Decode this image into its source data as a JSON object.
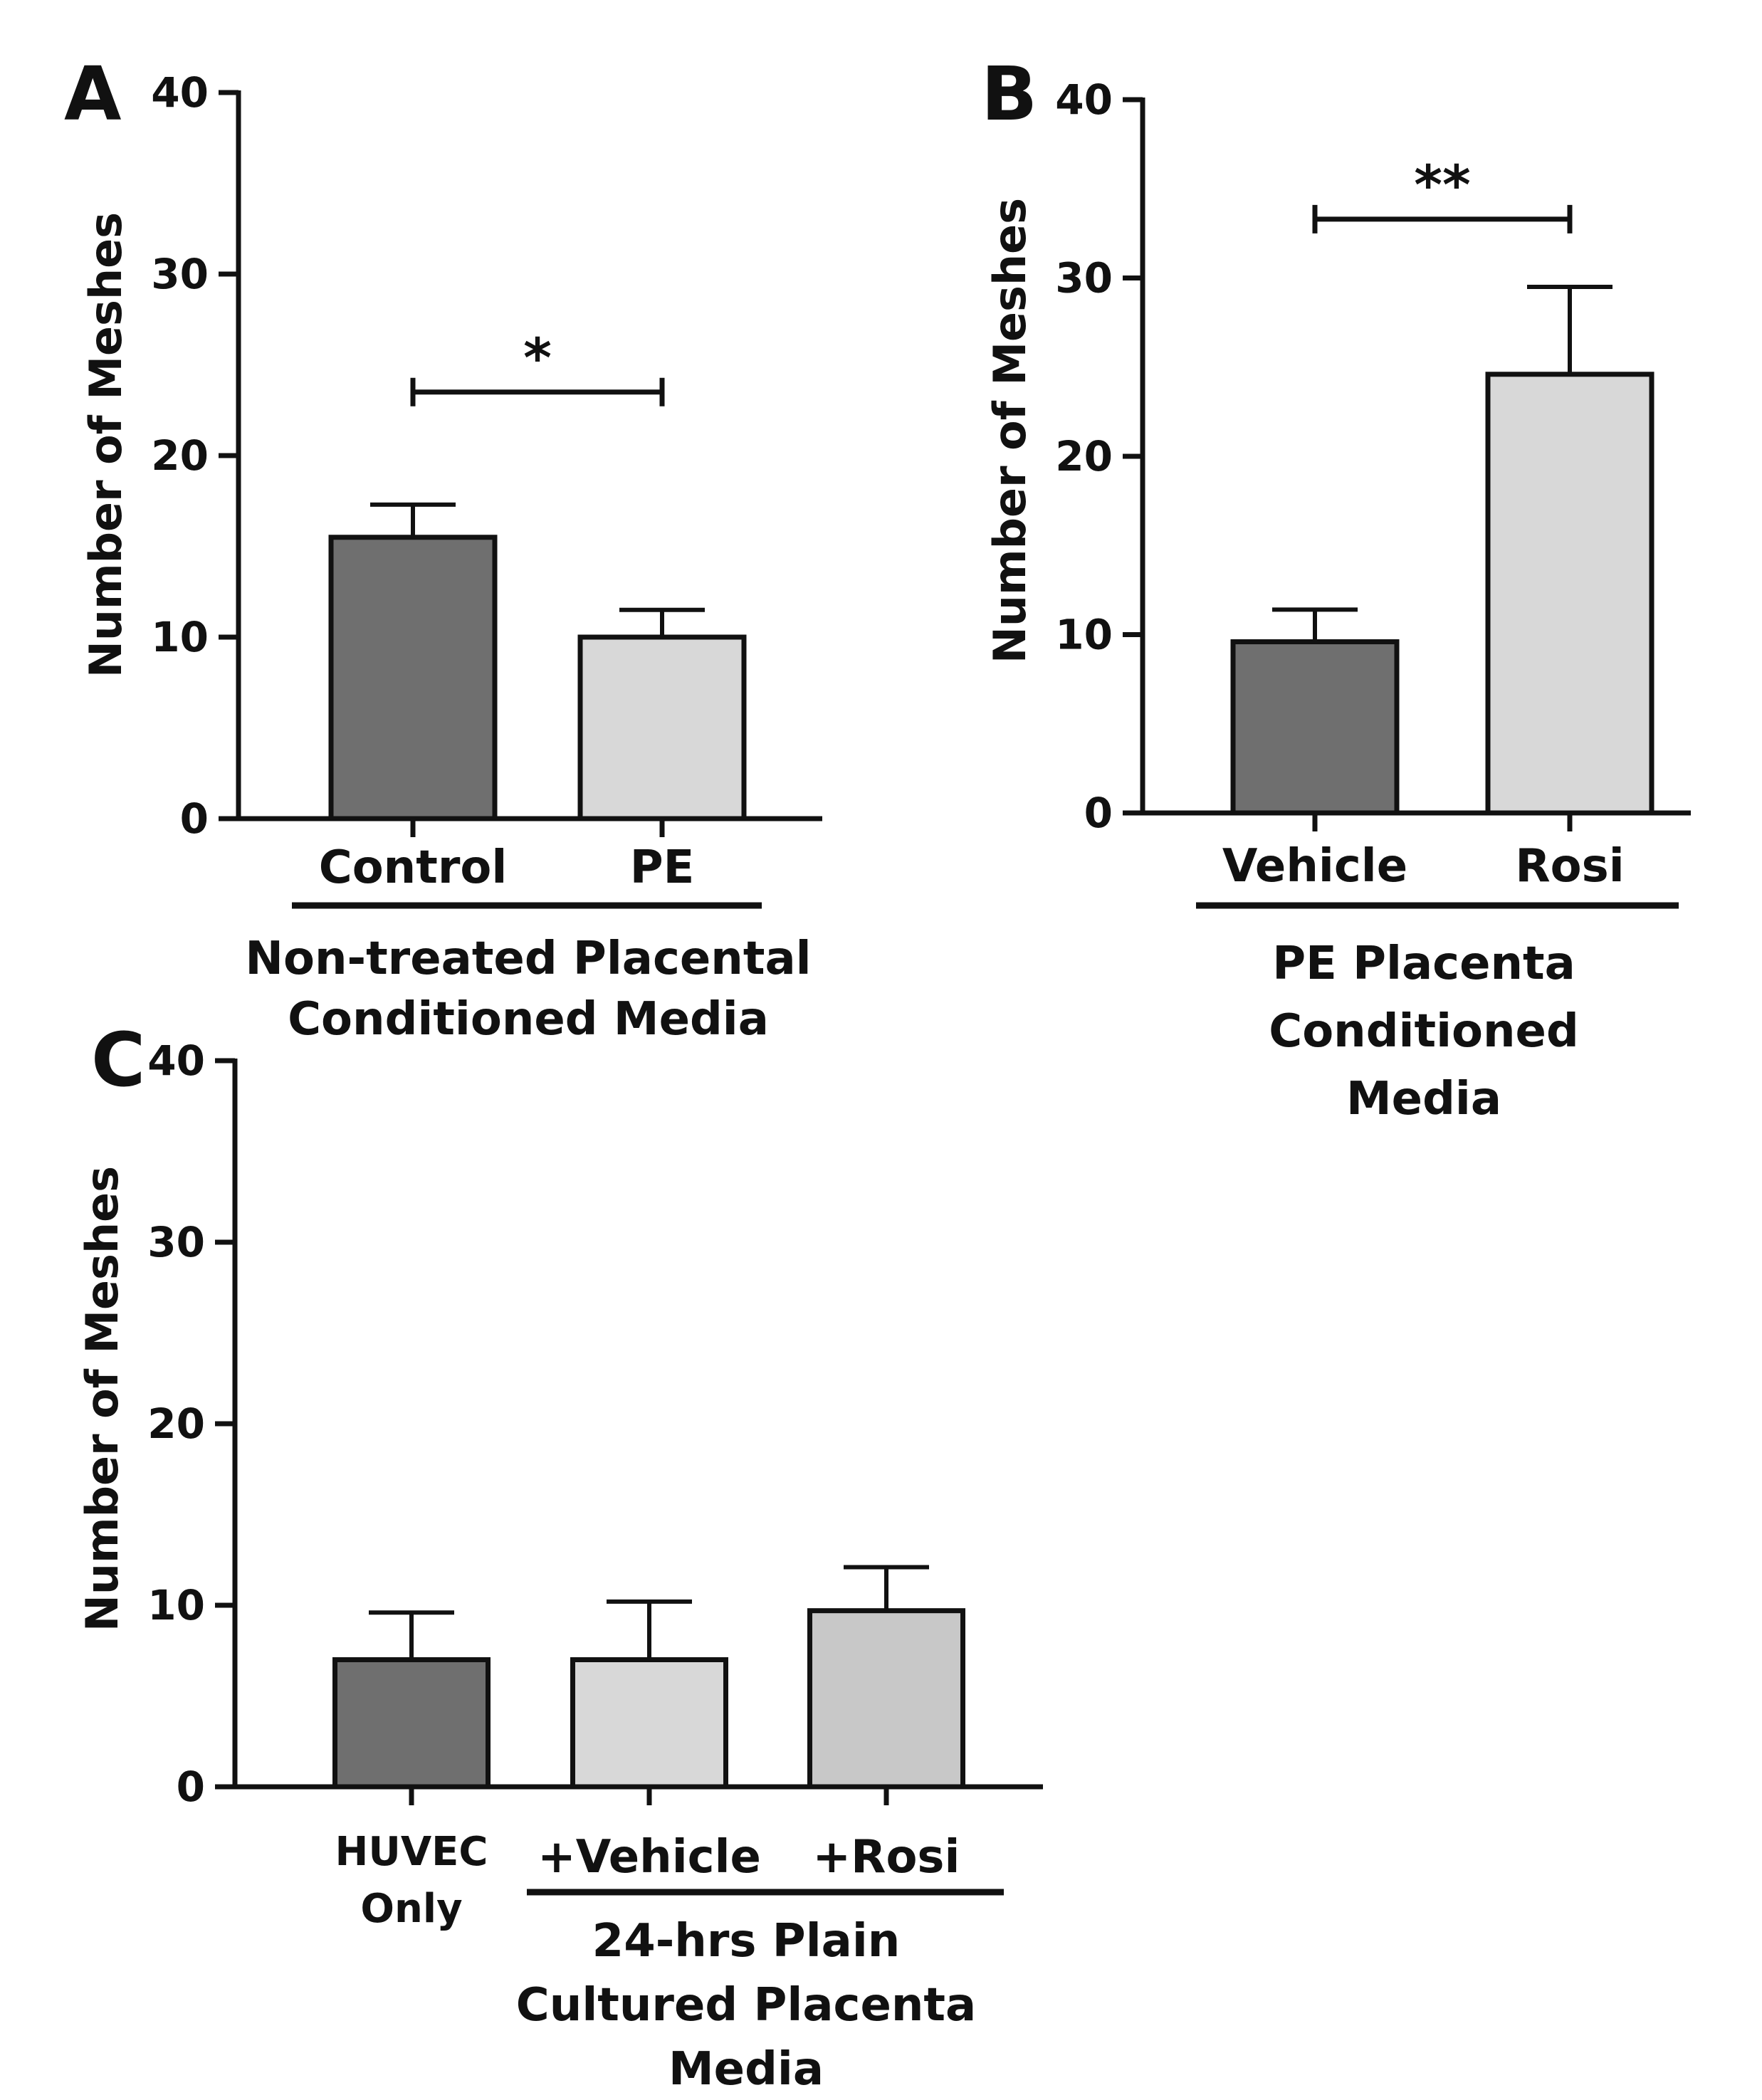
{
  "chart_data": [
    {
      "panel": "A",
      "type": "bar",
      "ylabel": "Number of Meshes",
      "ylim": [
        0,
        40
      ],
      "yticks": [
        "0",
        "10",
        "20",
        "30",
        "40"
      ],
      "categories": [
        "Control",
        "PE"
      ],
      "values": [
        15.5,
        10
      ],
      "errors": [
        1.8,
        1.5
      ],
      "colors": [
        "#6f6f6f",
        "#d8d8d8"
      ],
      "group_label": [
        "Non-treated Placental",
        "Conditioned Media"
      ],
      "significance": {
        "from": 0,
        "to": 1,
        "y": 23.5,
        "label": "*"
      }
    },
    {
      "panel": "B",
      "type": "bar",
      "ylabel": "Number of Meshes",
      "ylim": [
        0,
        40
      ],
      "yticks": [
        "0",
        "10",
        "20",
        "30",
        "40"
      ],
      "categories": [
        "Vehicle",
        "Rosi"
      ],
      "values": [
        9.6,
        24.6
      ],
      "errors": [
        1.8,
        4.9
      ],
      "colors": [
        "#6f6f6f",
        "#d8d8d8"
      ],
      "group_label": [
        "PE Placenta",
        "Conditioned",
        "Media"
      ],
      "significance": {
        "from": 0,
        "to": 1,
        "y": 33.3,
        "label": "**"
      }
    },
    {
      "panel": "C",
      "type": "bar",
      "ylabel": "Number of Meshes",
      "ylim": [
        0,
        40
      ],
      "yticks": [
        "0",
        "10",
        "20",
        "30",
        "40"
      ],
      "categories": [
        "HUVEC Only",
        "+Vehicle",
        "+Rosi"
      ],
      "category_lines": [
        [
          "HUVEC",
          "Only"
        ],
        [
          "+Vehicle"
        ],
        [
          "+Rosi"
        ]
      ],
      "values": [
        7,
        7,
        9.7
      ],
      "errors": [
        2.6,
        3.2,
        2.4
      ],
      "colors": [
        "#6f6f6f",
        "#d8d8d8",
        "#c8c8c8"
      ],
      "group_label": [
        "24-hrs Plain",
        "Cultured Placenta",
        "Media"
      ]
    }
  ]
}
